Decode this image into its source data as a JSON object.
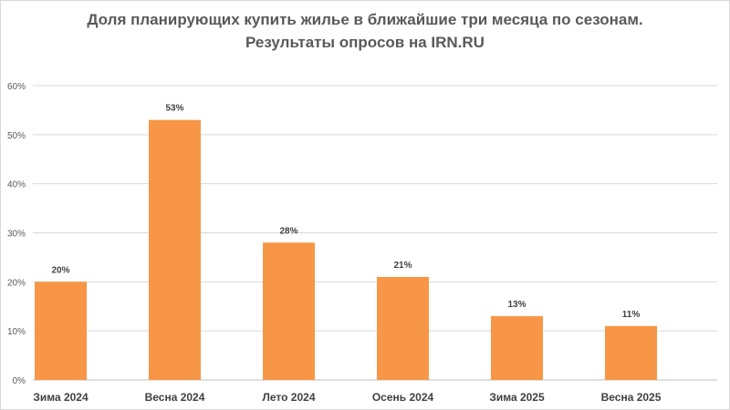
{
  "chart_data": {
    "type": "bar",
    "title": [
      "Доля планирующих купить жилье в ближайшие три месяца по сезонам.",
      "Результаты опросов на IRN.RU"
    ],
    "categories": [
      "Зима 2024",
      "Весна 2024",
      "Лето 2024",
      "Осень 2024",
      "Зима 2025",
      "Весна 2025"
    ],
    "values": [
      20,
      53,
      28,
      21,
      13,
      11
    ],
    "data_labels": [
      "20%",
      "53%",
      "28%",
      "21%",
      "13%",
      "11%"
    ],
    "yticks": [
      "0%",
      "10%",
      "20%",
      "30%",
      "40%",
      "50%",
      "60%"
    ],
    "ylim": [
      0,
      60
    ],
    "grid": true,
    "legend": "none",
    "bar_color": "#F79646"
  }
}
